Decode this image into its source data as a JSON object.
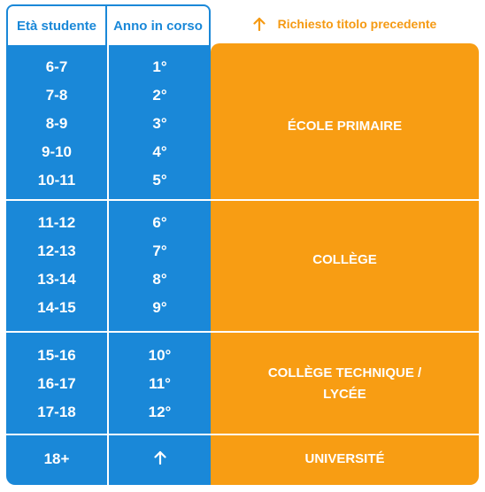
{
  "headers": {
    "age": "Età studente",
    "year": "Anno in corso"
  },
  "legend": {
    "icon": "arrow-up-icon",
    "text": "Richiesto titolo precedente",
    "color": "#f59a13"
  },
  "colors": {
    "blue": "#1a88d8",
    "orange": "#f89d13"
  },
  "rows": [
    {
      "age": "6-7",
      "year": "1°"
    },
    {
      "age": "7-8",
      "year": "2°"
    },
    {
      "age": "8-9",
      "year": "3°"
    },
    {
      "age": "9-10",
      "year": "4°"
    },
    {
      "age": "10-11",
      "year": "5°"
    },
    {
      "age": "11-12",
      "year": "6°"
    },
    {
      "age": "12-13",
      "year": "7°"
    },
    {
      "age": "13-14",
      "year": "8°"
    },
    {
      "age": "14-15",
      "year": "9°"
    },
    {
      "age": "15-16",
      "year": "10°"
    },
    {
      "age": "16-17",
      "year": "11°"
    },
    {
      "age": "17-18",
      "year": "12°"
    },
    {
      "age": "18+",
      "year_icon": "arrow-up-icon"
    }
  ],
  "stages": [
    {
      "label": "ÉCOLE PRIMAIRE"
    },
    {
      "label": "COLLÈGE"
    },
    {
      "label_line1": "COLLÈGE TECHNIQUE /",
      "label_line2": "LYCÉE"
    },
    {
      "label": "UNIVERSITÉ"
    }
  ]
}
